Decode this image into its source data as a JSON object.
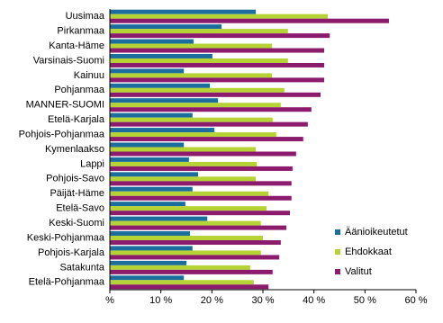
{
  "chart_data": {
    "type": "bar",
    "orientation": "horizontal",
    "categories": [
      "Uusimaa",
      "Pirkanmaa",
      "Kanta-Häme",
      "Varsinais-Suomi",
      "Kainuu",
      "Pohjanmaa",
      "MANNER-SUOMI",
      "Etelä-Karjala",
      "Pohjois-Pohjanmaa",
      "Kymenlaakso",
      "Lappi",
      "Pohjois-Savo",
      "Päijät-Häme",
      "Etelä-Savo",
      "Keski-Suomi",
      "Keski-Pohjanmaa",
      "Pohjois-Karjala",
      "Satakunta",
      "Etelä-Pohjanmaa"
    ],
    "series": [
      {
        "name": "Äänioikeutetut",
        "color": "#1b6d9d",
        "values": [
          28.6,
          21.9,
          16.4,
          20.1,
          14.5,
          19.6,
          21.2,
          16.2,
          20.5,
          14.5,
          15.5,
          17.3,
          16.2,
          14.8,
          19.1,
          15.7,
          16.2,
          15.0,
          14.5
        ]
      },
      {
        "name": "Ehdokkaat",
        "color": "#b5d334",
        "values": [
          42.7,
          34.9,
          31.8,
          34.9,
          31.8,
          34.2,
          33.5,
          31.9,
          32.6,
          28.6,
          28.8,
          28.6,
          31.1,
          30.7,
          29.6,
          30.0,
          29.6,
          27.5,
          28.2
        ]
      },
      {
        "name": "Valitut",
        "color": "#8c1b6e",
        "values": [
          54.7,
          43.1,
          42.0,
          42.0,
          42.0,
          41.3,
          39.5,
          38.8,
          37.9,
          36.5,
          35.8,
          35.6,
          35.6,
          35.3,
          34.6,
          33.5,
          33.2,
          31.9,
          31.1
        ]
      }
    ],
    "xlim": [
      0,
      60
    ],
    "xticks": [
      {
        "value": 0,
        "label": "%"
      },
      {
        "value": 10,
        "label": "10 %"
      },
      {
        "value": 20,
        "label": "20 %"
      },
      {
        "value": 30,
        "label": "30 %"
      },
      {
        "value": 40,
        "label": "40 %"
      },
      {
        "value": 50,
        "label": "50 %"
      },
      {
        "value": 60,
        "label": "60 %"
      }
    ],
    "legend": "lower-right"
  }
}
